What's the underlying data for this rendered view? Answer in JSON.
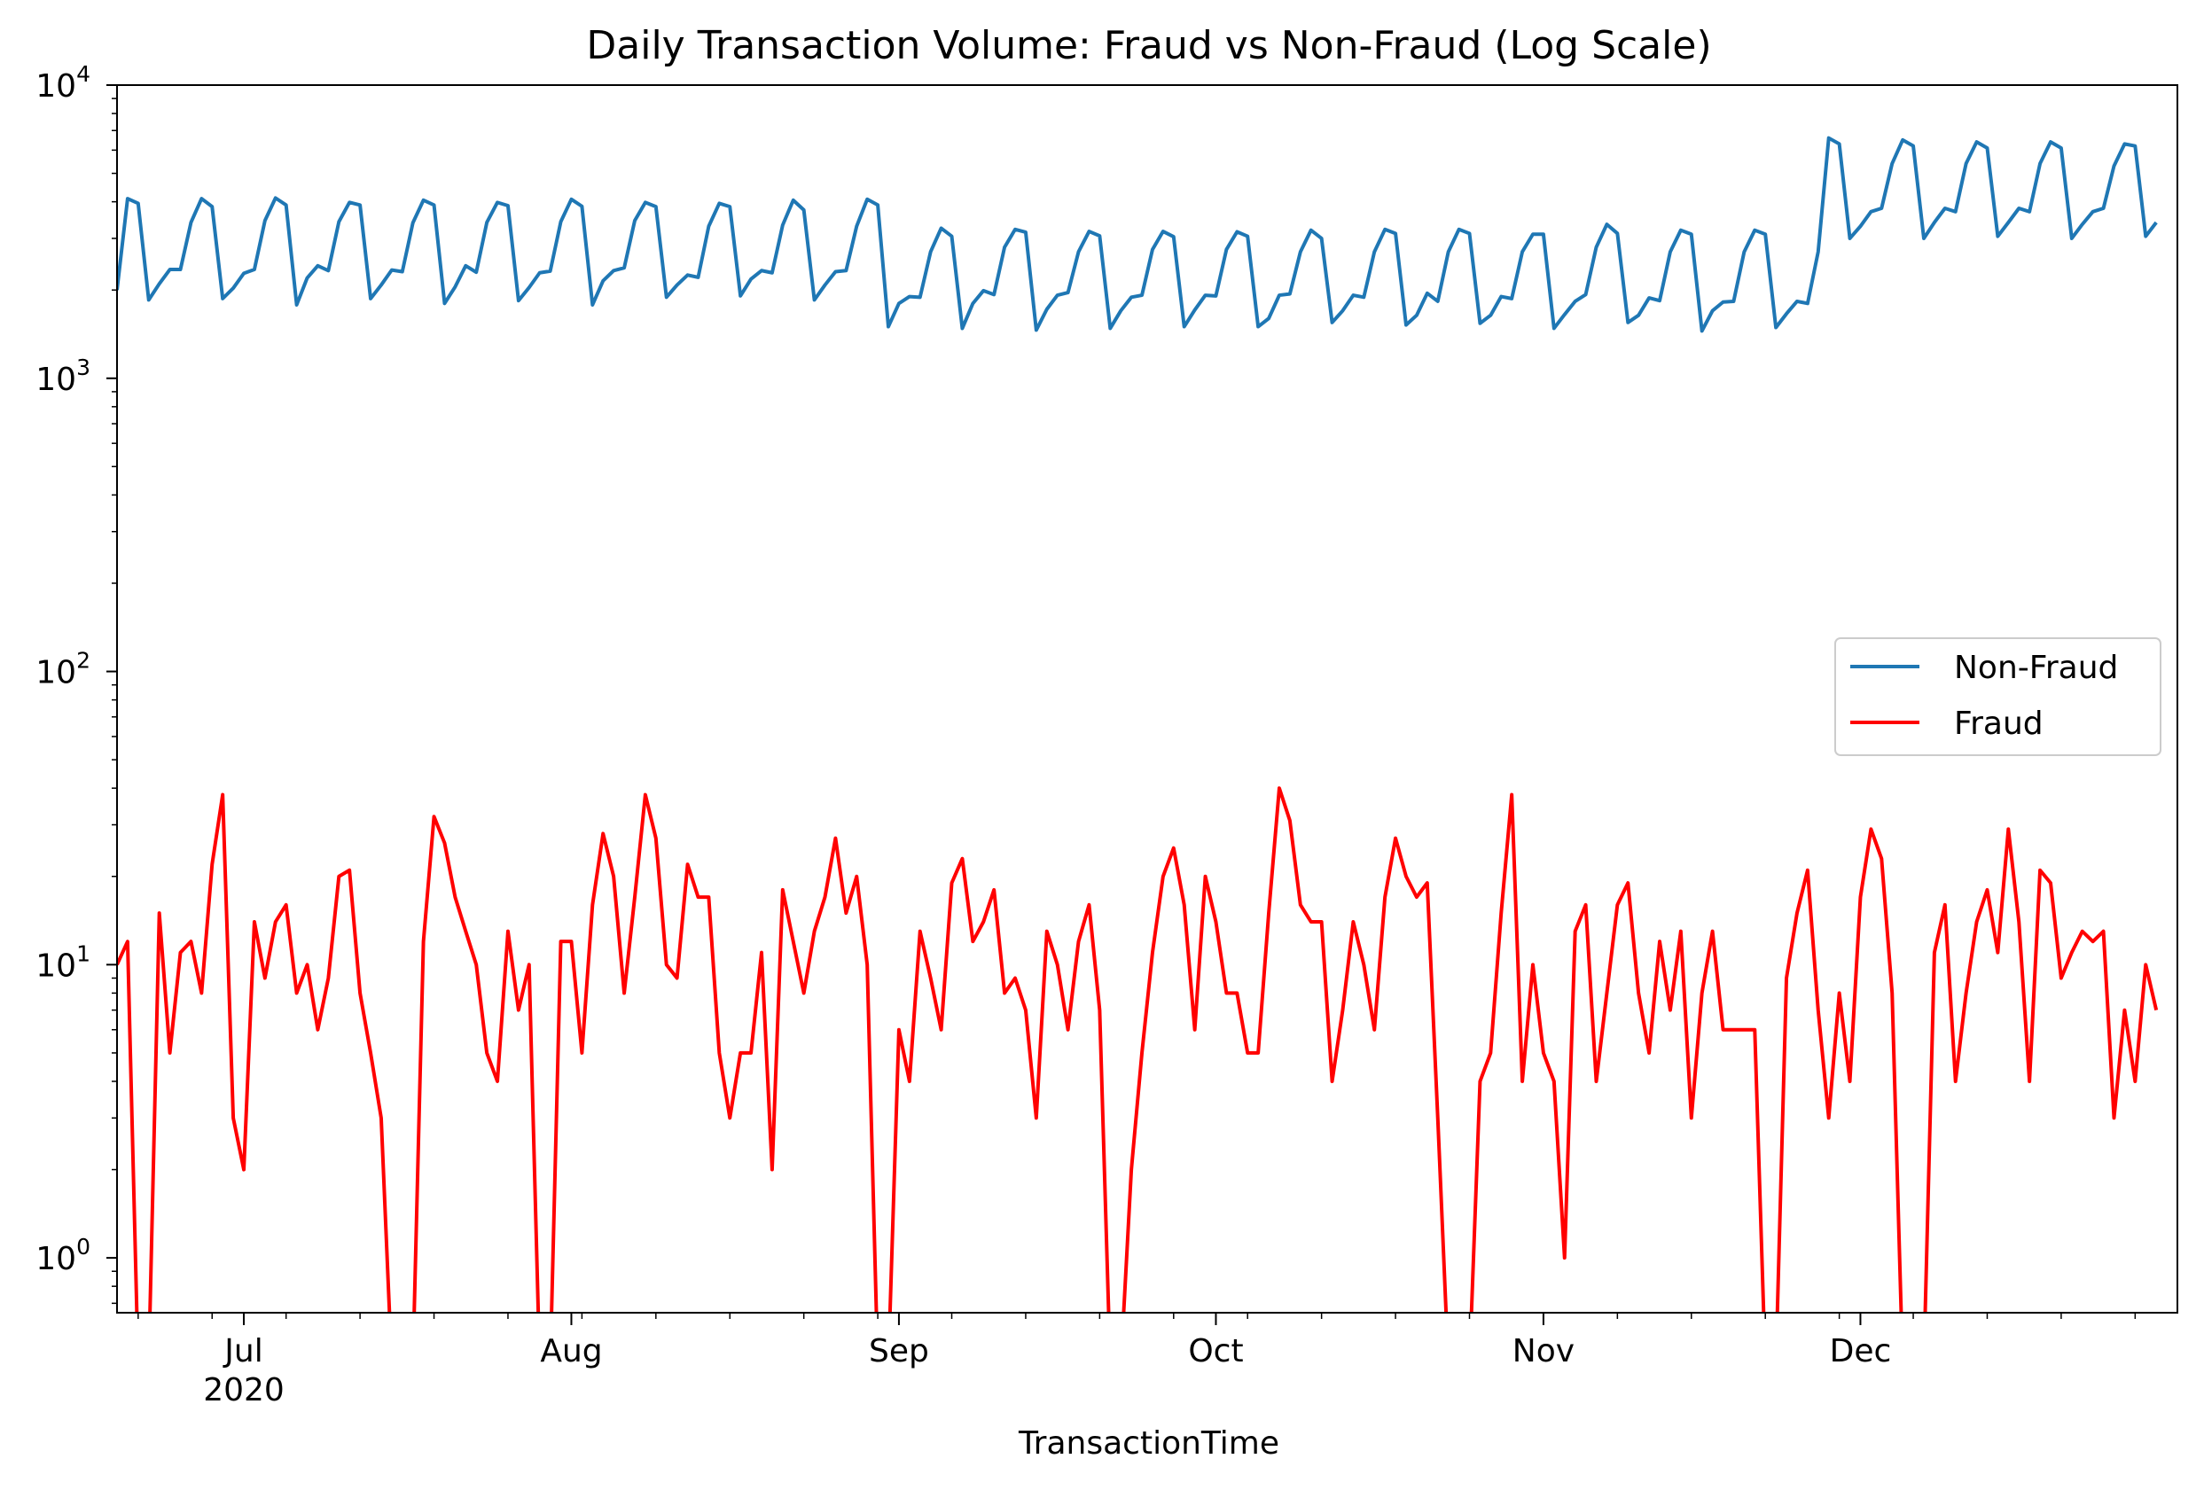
{
  "chart_data": {
    "type": "line",
    "title": "Daily Transaction Volume: Fraud vs Non-Fraud (Log Scale)",
    "xlabel": "TransactionTime",
    "ylabel": "",
    "y_scale": "log",
    "ylim": [
      0.65,
      10000
    ],
    "xlim": [
      "2020-06-19",
      "2020-12-31"
    ],
    "x_start": "2020-06-19",
    "x_step": "1 day",
    "x_ticks": [
      {
        "date": "2020-07-01",
        "label": "Jul",
        "sublabel": "2020"
      },
      {
        "date": "2020-08-01",
        "label": "Aug",
        "sublabel": ""
      },
      {
        "date": "2020-09-01",
        "label": "Sep",
        "sublabel": ""
      },
      {
        "date": "2020-10-01",
        "label": "Oct",
        "sublabel": ""
      },
      {
        "date": "2020-11-01",
        "label": "Nov",
        "sublabel": ""
      },
      {
        "date": "2020-12-01",
        "label": "Dec",
        "sublabel": ""
      }
    ],
    "y_ticks": [
      {
        "value": 1,
        "base": "10",
        "exp": "0"
      },
      {
        "value": 10,
        "base": "10",
        "exp": "1"
      },
      {
        "value": 100,
        "base": "10",
        "exp": "2"
      },
      {
        "value": 1000,
        "base": "10",
        "exp": "3"
      },
      {
        "value": 10000,
        "base": "10",
        "exp": "4"
      }
    ],
    "legend_position": "center-right",
    "grid": false,
    "series": [
      {
        "name": "Non-Fraud",
        "color": "#1f77b4",
        "values": [
          2000,
          4100,
          3950,
          1850,
          2100,
          2350,
          2350,
          3400,
          4100,
          3850,
          1870,
          2030,
          2280,
          2350,
          3450,
          4120,
          3900,
          1780,
          2200,
          2420,
          2330,
          3420,
          3980,
          3900,
          1870,
          2080,
          2340,
          2310,
          3390,
          4050,
          3900,
          1800,
          2050,
          2420,
          2300,
          3400,
          3980,
          3880,
          1840,
          2040,
          2290,
          2320,
          3420,
          4080,
          3860,
          1780,
          2150,
          2330,
          2380,
          3450,
          3980,
          3850,
          1890,
          2080,
          2250,
          2210,
          3300,
          3950,
          3850,
          1910,
          2180,
          2330,
          2290,
          3330,
          4050,
          3750,
          1850,
          2080,
          2310,
          2330,
          3300,
          4080,
          3900,
          1500,
          1800,
          1900,
          1890,
          2700,
          3250,
          3050,
          1480,
          1800,
          1990,
          1930,
          2800,
          3220,
          3150,
          1460,
          1720,
          1920,
          1960,
          2700,
          3170,
          3060,
          1480,
          1700,
          1890,
          1920,
          2750,
          3170,
          3040,
          1500,
          1710,
          1920,
          1910,
          2750,
          3160,
          3050,
          1500,
          1600,
          1920,
          1940,
          2700,
          3200,
          3000,
          1550,
          1700,
          1920,
          1890,
          2700,
          3220,
          3120,
          1520,
          1640,
          1950,
          1830,
          2700,
          3220,
          3120,
          1540,
          1640,
          1900,
          1870,
          2700,
          3100,
          3100,
          1480,
          1650,
          1830,
          1930,
          2800,
          3350,
          3120,
          1550,
          1640,
          1880,
          1840,
          2700,
          3200,
          3100,
          1450,
          1700,
          1820,
          1830,
          2700,
          3200,
          3100,
          1490,
          1660,
          1830,
          1800,
          2700,
          6600,
          6300,
          3000,
          3300,
          3700,
          3800,
          5400,
          6500,
          6200,
          3000,
          3400,
          3800,
          3700,
          5400,
          6400,
          6100,
          3050,
          3400,
          3800,
          3700,
          5400,
          6400,
          6100,
          3000,
          3350,
          3700,
          3800,
          5300,
          6300,
          6200,
          3050,
          3400
        ]
      },
      {
        "name": "Fraud",
        "color": "#ff0000",
        "values": [
          10,
          12,
          0,
          0,
          15,
          5,
          11,
          12,
          8,
          22,
          38,
          3,
          2,
          14,
          9,
          14,
          16,
          8,
          10,
          6,
          9,
          20,
          21,
          8,
          5,
          3,
          0,
          0,
          0,
          12,
          32,
          26,
          17,
          13,
          10,
          5,
          4,
          13,
          7,
          10,
          0,
          0,
          12,
          12,
          5,
          16,
          28,
          20,
          8,
          17,
          38,
          27,
          10,
          9,
          22,
          17,
          17,
          5,
          3,
          5,
          5,
          11,
          2,
          18,
          12,
          8,
          13,
          17,
          27,
          15,
          20,
          10,
          0,
          0,
          6,
          4,
          13,
          9,
          6,
          19,
          23,
          12,
          14,
          18,
          8,
          9,
          7,
          3,
          13,
          10,
          6,
          12,
          16,
          7,
          0,
          0,
          2,
          5,
          11,
          20,
          25,
          16,
          6,
          20,
          14,
          8,
          8,
          5,
          5,
          15,
          40,
          31,
          16,
          14,
          14,
          4,
          7,
          14,
          10,
          6,
          17,
          27,
          20,
          17,
          19,
          3,
          0,
          0,
          0,
          4,
          5,
          15,
          38,
          4,
          10,
          5,
          4,
          1,
          13,
          16,
          4,
          8,
          16,
          19,
          8,
          5,
          12,
          7,
          13,
          3,
          8,
          13,
          6,
          6,
          6,
          6,
          0,
          0,
          9,
          15,
          21,
          7,
          3,
          8,
          4,
          17,
          29,
          23,
          8,
          0,
          0,
          0,
          11,
          16,
          4,
          8,
          14,
          18,
          11,
          29,
          14,
          4,
          21,
          19,
          9,
          11,
          13,
          12,
          13,
          3,
          7,
          4,
          10,
          7
        ]
      }
    ]
  }
}
